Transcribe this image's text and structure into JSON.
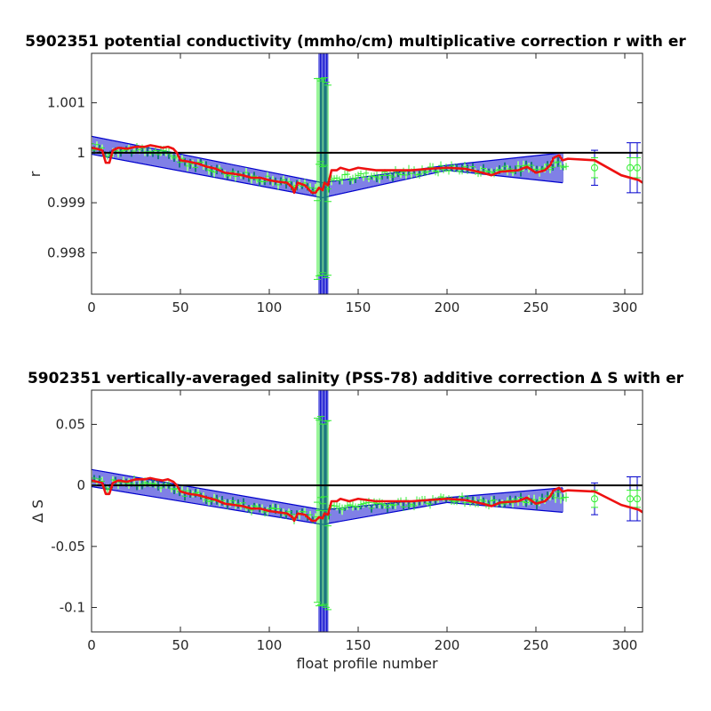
{
  "chart_data": [
    {
      "type": "line",
      "title": "5902351 potential conductivity (mmho/cm) multiplicative correction r with er",
      "xlabel": "",
      "ylabel": "r",
      "xlim": [
        0,
        310
      ],
      "ylim": [
        0.99717,
        1.00199
      ],
      "xticks": [
        0,
        50,
        100,
        150,
        200,
        250,
        300
      ],
      "xtick_labels": [
        "0",
        "50",
        "100",
        "150",
        "200",
        "250",
        "300"
      ],
      "yticks": [
        0.998,
        0.999,
        1,
        1.001
      ],
      "ytick_labels": [
        "0.998",
        "0.999",
        "1",
        "1.001"
      ],
      "reference_line": 1,
      "grid": false,
      "colors": {
        "fit": "#0000cd",
        "points": "#33ee33",
        "correction": "#ee1111",
        "reference": "#000000"
      },
      "series": [
        {
          "style": "blue band with error bars",
          "segments": [
            {
              "x": [
                0,
                130
              ],
              "center": [
                1.00015,
                0.99925
              ],
              "halfwidth": [
                0.00018,
                0.00015
              ]
            },
            {
              "x": [
                130,
                200
              ],
              "center": [
                0.99925,
                0.9997
              ],
              "halfwidth": [
                0.00015,
                5e-05
              ]
            },
            {
              "x": [
                200,
                265
              ],
              "center": [
                0.9997,
                0.9997
              ],
              "halfwidth": [
                5e-05,
                0.0003
              ]
            }
          ],
          "spike": {
            "x_range": [
              128,
              133
            ],
            "range": [
              0.99717,
              1.00199
            ]
          },
          "isolated": [
            {
              "x": 283,
              "y": 0.9997,
              "err": 0.00035
            },
            {
              "x": 303,
              "y": 0.9997,
              "err": 0.0005
            },
            {
              "x": 307,
              "y": 0.9997,
              "err": 0.0005
            }
          ]
        },
        {
          "style": "green markers with error bars",
          "range": [
            0,
            268
          ],
          "spike": {
            "x_range": [
              127,
              133
            ],
            "range": [
              0.99745,
              1.00155
            ]
          },
          "isolated": [
            {
              "x": 283,
              "y": 0.9997,
              "err": 0.0002
            },
            {
              "x": 303,
              "y": 0.9997,
              "err": 0.0002
            },
            {
              "x": 307,
              "y": 0.9997,
              "err": 0.0002
            }
          ]
        },
        {
          "style": "red line",
          "x": [
            0,
            3,
            6,
            8,
            10,
            12,
            15,
            20,
            25,
            30,
            33,
            36,
            40,
            43,
            46,
            48,
            50,
            55,
            60,
            65,
            70,
            75,
            80,
            85,
            90,
            95,
            100,
            105,
            110,
            113,
            114,
            116,
            120,
            124,
            126,
            128,
            130,
            131,
            133,
            135,
            138,
            140,
            145,
            150,
            160,
            170,
            180,
            190,
            200,
            210,
            220,
            225,
            230,
            240,
            245,
            250,
            255,
            258,
            260,
            263,
            265,
            268,
            283,
            298,
            308,
            310
          ],
          "y": [
            1.0001,
            1.00008,
            1.00005,
            0.9998,
            0.9998,
            1.00005,
            1.0001,
            1.00008,
            1.00012,
            1.00012,
            1.00015,
            1.00013,
            1.0001,
            1.00012,
            1.00008,
            1.0,
            0.99985,
            0.99982,
            0.99978,
            0.99972,
            0.99968,
            0.9996,
            0.99958,
            0.99955,
            0.9995,
            0.9995,
            0.99945,
            0.99942,
            0.9994,
            0.9993,
            0.9992,
            0.9994,
            0.99935,
            0.9992,
            0.9992,
            0.9993,
            0.99925,
            0.9994,
            0.99935,
            0.99965,
            0.99965,
            0.9997,
            0.99965,
            0.9997,
            0.99965,
            0.99965,
            0.99965,
            0.99968,
            0.9997,
            0.99968,
            0.9996,
            0.99955,
            0.99962,
            0.99965,
            0.99972,
            0.9996,
            0.99965,
            0.99975,
            0.9999,
            0.99995,
            0.99985,
            0.99988,
            0.99985,
            0.99955,
            0.99945,
            0.9994
          ]
        }
      ]
    },
    {
      "type": "line",
      "title": "5902351 vertically-averaged salinity (PSS-78) additive correction Δ S with er",
      "xlabel": "float profile number",
      "ylabel": "Δ S",
      "xlim": [
        0,
        310
      ],
      "ylim": [
        -0.12,
        0.078
      ],
      "xticks": [
        0,
        50,
        100,
        150,
        200,
        250,
        300
      ],
      "xtick_labels": [
        "0",
        "50",
        "100",
        "150",
        "200",
        "250",
        "300"
      ],
      "yticks": [
        -0.1,
        -0.05,
        0,
        0.05
      ],
      "ytick_labels": [
        "-0.1",
        "-0.05",
        "0",
        "0.05"
      ],
      "reference_line": 0,
      "grid": false,
      "colors": {
        "fit": "#0000cd",
        "points": "#33ee33",
        "correction": "#ee1111",
        "reference": "#000000"
      },
      "series": [
        {
          "style": "blue band with error bars",
          "segments": [
            {
              "x": [
                0,
                130
              ],
              "center": [
                0.006,
                -0.026
              ],
              "halfwidth": [
                0.007,
                0.006
              ]
            },
            {
              "x": [
                130,
                200
              ],
              "center": [
                -0.026,
                -0.012
              ],
              "halfwidth": [
                0.006,
                0.002
              ]
            },
            {
              "x": [
                200,
                265
              ],
              "center": [
                -0.012,
                -0.012
              ],
              "halfwidth": [
                0.002,
                0.01
              ]
            }
          ],
          "spike": {
            "x_range": [
              128,
              133
            ],
            "range": [
              -0.12,
              0.078
            ]
          },
          "isolated": [
            {
              "x": 283,
              "y": -0.011,
              "err": 0.013
            },
            {
              "x": 303,
              "y": -0.011,
              "err": 0.018
            },
            {
              "x": 307,
              "y": -0.011,
              "err": 0.018
            }
          ]
        },
        {
          "style": "green markers with error bars",
          "range": [
            0,
            268
          ],
          "spike": {
            "x_range": [
              127,
              133
            ],
            "range": [
              -0.105,
              0.058
            ]
          },
          "isolated": [
            {
              "x": 283,
              "y": -0.011,
              "err": 0.007
            },
            {
              "x": 303,
              "y": -0.011,
              "err": 0.007
            },
            {
              "x": 307,
              "y": -0.011,
              "err": 0.007
            }
          ]
        },
        {
          "style": "red line",
          "x": [
            0,
            3,
            6,
            8,
            10,
            12,
            15,
            20,
            25,
            30,
            33,
            36,
            40,
            43,
            46,
            48,
            50,
            55,
            60,
            65,
            70,
            75,
            80,
            85,
            90,
            95,
            100,
            105,
            110,
            113,
            114,
            116,
            120,
            124,
            126,
            128,
            130,
            131,
            133,
            135,
            138,
            140,
            145,
            150,
            160,
            170,
            180,
            190,
            200,
            210,
            220,
            225,
            230,
            240,
            245,
            250,
            255,
            258,
            260,
            263,
            265,
            268,
            283,
            298,
            308,
            310
          ],
          "y": [
            0.004,
            0.003,
            0.002,
            -0.007,
            -0.007,
            0.002,
            0.004,
            0.003,
            0.005,
            0.005,
            0.006,
            0.005,
            0.004,
            0.005,
            0.003,
            0.0,
            -0.005,
            -0.007,
            -0.008,
            -0.01,
            -0.012,
            -0.015,
            -0.016,
            -0.017,
            -0.019,
            -0.019,
            -0.021,
            -0.022,
            -0.023,
            -0.026,
            -0.029,
            -0.023,
            -0.024,
            -0.029,
            -0.029,
            -0.026,
            -0.027,
            -0.023,
            -0.024,
            -0.013,
            -0.013,
            -0.011,
            -0.013,
            -0.011,
            -0.013,
            -0.013,
            -0.013,
            -0.012,
            -0.011,
            -0.012,
            -0.015,
            -0.017,
            -0.014,
            -0.013,
            -0.01,
            -0.015,
            -0.013,
            -0.009,
            -0.004,
            -0.002,
            -0.005,
            -0.004,
            -0.005,
            -0.016,
            -0.02,
            -0.022
          ]
        }
      ]
    }
  ]
}
